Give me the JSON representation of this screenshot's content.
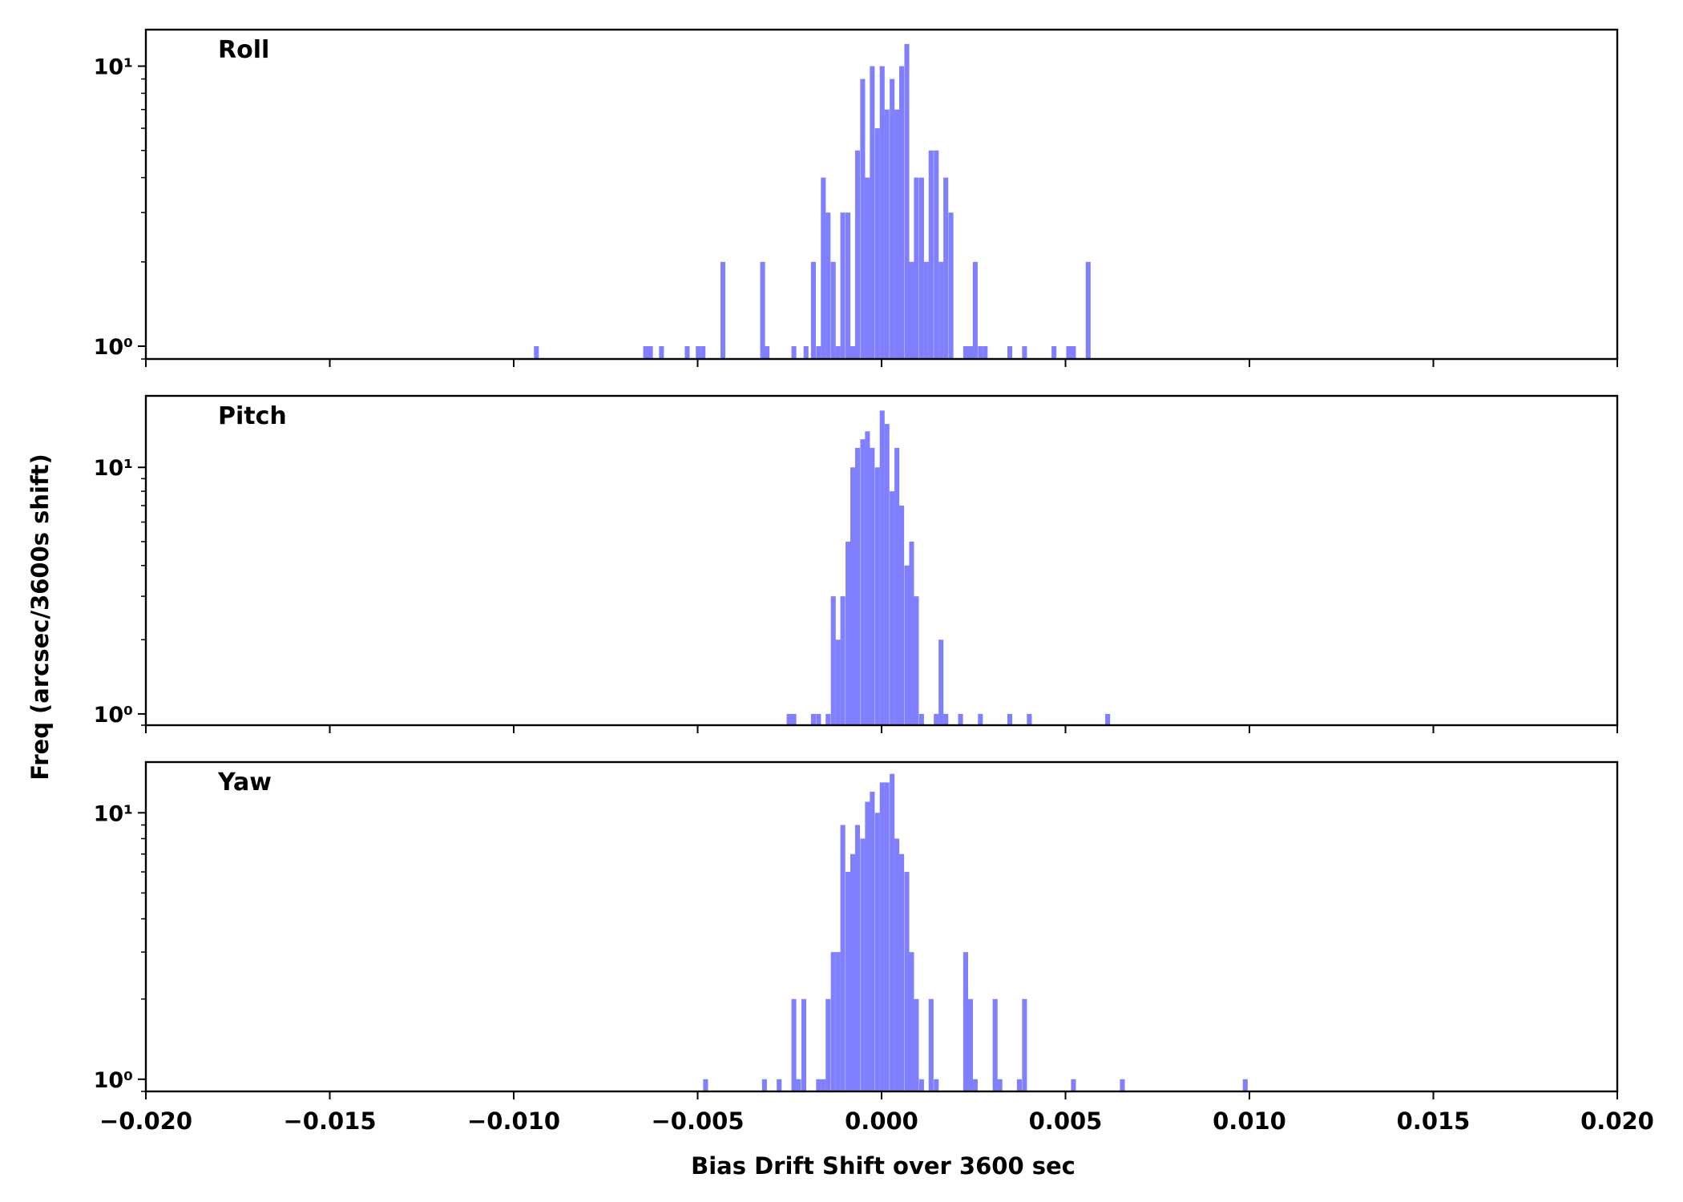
{
  "chart_data": {
    "type": "histogram",
    "yscale": "log",
    "xlim": [
      -0.02,
      0.02
    ],
    "xticks": [
      "−0.020",
      "−0.015",
      "−0.010",
      "−0.005",
      "0.000",
      "0.005",
      "0.010",
      "0.015",
      "0.020"
    ],
    "xtick_values": [
      -0.02,
      -0.015,
      -0.01,
      -0.005,
      0,
      0.005,
      0.01,
      0.015,
      0.02
    ],
    "xlabel": "Bias Drift Shift over 3600 sec",
    "ylabel": "Freq (arcsec/3600s shift)",
    "ytick_labels": [
      "10⁰",
      "10¹"
    ],
    "bar_color": "#8080ff",
    "grid": false,
    "bin_width": 0.000133,
    "panels": [
      {
        "name": "Roll",
        "ylim": [
          0.9,
          13.5
        ],
        "bins": [
          [
            -0.00945,
            1
          ],
          [
            -0.00648,
            1
          ],
          [
            -0.00635,
            1
          ],
          [
            -0.00605,
            1
          ],
          [
            -0.00535,
            1
          ],
          [
            -0.00505,
            1
          ],
          [
            -0.00492,
            1
          ],
          [
            -0.00438,
            2
          ],
          [
            -0.0033,
            2
          ],
          [
            -0.00318,
            1
          ],
          [
            -0.00245,
            1
          ],
          [
            -0.00212,
            1
          ],
          [
            -0.00192,
            2
          ],
          [
            -0.00178,
            1
          ],
          [
            -0.00165,
            4
          ],
          [
            -0.00152,
            3
          ],
          [
            -0.00138,
            2
          ],
          [
            -0.00125,
            1
          ],
          [
            -0.00112,
            3
          ],
          [
            -0.00098,
            3
          ],
          [
            -0.00085,
            1
          ],
          [
            -0.00072,
            5
          ],
          [
            -0.00058,
            9
          ],
          [
            -0.00045,
            4
          ],
          [
            -0.00032,
            10
          ],
          [
            -0.00018,
            6
          ],
          [
            -5e-05,
            10
          ],
          [
            8e-05,
            7
          ],
          [
            0.00022,
            9
          ],
          [
            0.00035,
            7
          ],
          [
            0.00048,
            10
          ],
          [
            0.00062,
            12
          ],
          [
            0.00075,
            2
          ],
          [
            0.00088,
            4
          ],
          [
            0.00102,
            4
          ],
          [
            0.00115,
            2
          ],
          [
            0.00128,
            5
          ],
          [
            0.00142,
            5
          ],
          [
            0.00155,
            2
          ],
          [
            0.00168,
            4
          ],
          [
            0.00182,
            3
          ],
          [
            0.00222,
            1
          ],
          [
            0.00235,
            1
          ],
          [
            0.00248,
            2
          ],
          [
            0.00262,
            1
          ],
          [
            0.00275,
            1
          ],
          [
            0.00342,
            1
          ],
          [
            0.00382,
            1
          ],
          [
            0.00462,
            1
          ],
          [
            0.00502,
            1
          ],
          [
            0.00515,
            1
          ],
          [
            0.00555,
            2
          ]
        ]
      },
      {
        "name": "Pitch",
        "ylim": [
          0.9,
          19.5
        ],
        "bins": [
          [
            -0.00258,
            1
          ],
          [
            -0.00245,
            1
          ],
          [
            -0.00192,
            1
          ],
          [
            -0.00178,
            1
          ],
          [
            -0.00152,
            1
          ],
          [
            -0.00138,
            3
          ],
          [
            -0.00125,
            2
          ],
          [
            -0.00112,
            3
          ],
          [
            -0.00098,
            5
          ],
          [
            -0.00085,
            10
          ],
          [
            -0.00072,
            12
          ],
          [
            -0.00058,
            13
          ],
          [
            -0.00045,
            14
          ],
          [
            -0.00032,
            12
          ],
          [
            -0.00018,
            10
          ],
          [
            -5e-05,
            17
          ],
          [
            8e-05,
            15
          ],
          [
            0.00022,
            8
          ],
          [
            0.00035,
            12
          ],
          [
            0.00048,
            7
          ],
          [
            0.00062,
            4
          ],
          [
            0.00075,
            5
          ],
          [
            0.00088,
            3
          ],
          [
            0.00102,
            1
          ],
          [
            0.00142,
            1
          ],
          [
            0.00155,
            2
          ],
          [
            0.00168,
            1
          ],
          [
            0.00208,
            1
          ],
          [
            0.00262,
            1
          ],
          [
            0.00342,
            1
          ],
          [
            0.00395,
            1
          ],
          [
            0.00608,
            1
          ]
        ]
      },
      {
        "name": "Yaw",
        "ylim": [
          0.9,
          15.5
        ],
        "bins": [
          [
            -0.00485,
            1
          ],
          [
            -0.00325,
            1
          ],
          [
            -0.00285,
            1
          ],
          [
            -0.00245,
            2
          ],
          [
            -0.00232,
            1
          ],
          [
            -0.00218,
            2
          ],
          [
            -0.00178,
            1
          ],
          [
            -0.00165,
            1
          ],
          [
            -0.00152,
            2
          ],
          [
            -0.00138,
            3
          ],
          [
            -0.00125,
            3
          ],
          [
            -0.00112,
            9
          ],
          [
            -0.00098,
            6
          ],
          [
            -0.00085,
            7
          ],
          [
            -0.00072,
            9
          ],
          [
            -0.00058,
            8
          ],
          [
            -0.00045,
            11
          ],
          [
            -0.00032,
            12
          ],
          [
            -0.00018,
            10
          ],
          [
            -5e-05,
            13
          ],
          [
            8e-05,
            13
          ],
          [
            0.00022,
            14
          ],
          [
            0.00035,
            8
          ],
          [
            0.00048,
            7
          ],
          [
            0.00062,
            6
          ],
          [
            0.00075,
            3
          ],
          [
            0.00088,
            2
          ],
          [
            0.00102,
            1
          ],
          [
            0.00128,
            2
          ],
          [
            0.00142,
            1
          ],
          [
            0.00222,
            3
          ],
          [
            0.00235,
            2
          ],
          [
            0.00248,
            1
          ],
          [
            0.00302,
            2
          ],
          [
            0.00315,
            1
          ],
          [
            0.00368,
            1
          ],
          [
            0.00382,
            2
          ],
          [
            0.00515,
            1
          ],
          [
            0.00648,
            1
          ],
          [
            0.00982,
            1
          ]
        ]
      }
    ]
  }
}
